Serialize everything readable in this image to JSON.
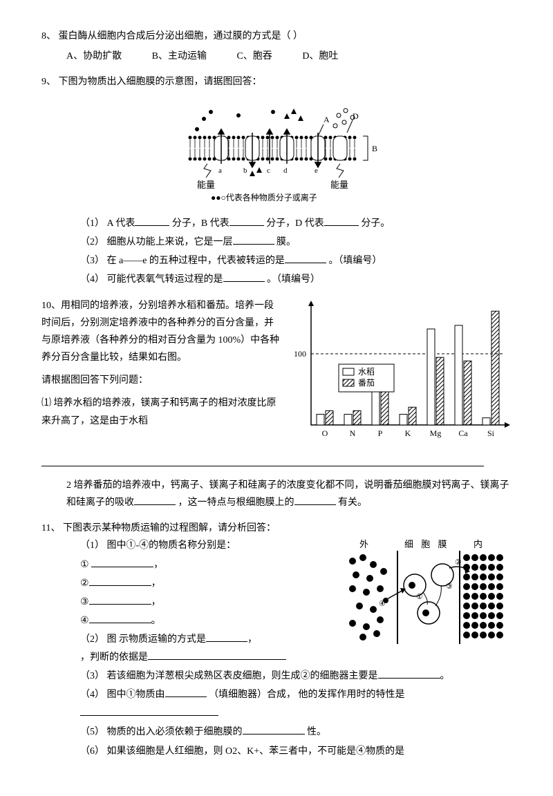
{
  "q8": {
    "num": "8、",
    "text": "蛋白酶从细胞内合成后分泌出细胞，通过膜的方式是（      ）",
    "opts": {
      "a": "A、协助扩散",
      "b": "B、主动运输",
      "c": "C、胞吞",
      "d": "D、胞吐"
    }
  },
  "q9": {
    "num": "9、",
    "text": "下图为物质出入细胞膜的示意图，请据图回答：",
    "caption": "●●○代表各种物质分子或离子",
    "energy_label": "能量",
    "labels": {
      "a": "a",
      "b": "b",
      "c": "c",
      "d": "d",
      "e": "e",
      "A": "A",
      "B": "B",
      "D": "D"
    },
    "s1a": "（1）  A 代表",
    "s1b": "分子，B 代表",
    "s1c": "分子，D 代表",
    "s1d": "分子。",
    "s2a": "（2）  细胞从功能上来说，它是一层",
    "s2b": "膜。",
    "s3a": "（3）  在 a——e 的五种过程中，代表被转运的是",
    "s3b": "。（填编号）",
    "s4a": "（4）  可能代表氧气转运过程的是",
    "s4b": "。（填编号）"
  },
  "q10": {
    "num": "10、",
    "intro1": "用相同的培养液，分别培养水稻和番茄。培养一段时间后，分别测定培养液中的各种养分的百分含量，并与原培养液（各种养分的相对百分含量为 100%）中各种养分百分含量比较，结果如右图。",
    "intro2": "请根据图回答下列问题：",
    "s1": "⑴  培养水稻的培养液，镁离子和钙离子的相对浓度比原来升高了，这是由于水稻",
    "s2a": "2  培养番茄的培养液中，钙离子、镁离子和硅离子的浓度变化都不同，说明番茄细胞膜对钙离子、镁离子和硅离子的吸收",
    "s2b": "，这一特点与根细胞膜上的",
    "s2c": "有关。",
    "chart": {
      "legend": {
        "rice": "水稻",
        "tomato": "番茄"
      },
      "categories": [
        "O",
        "N",
        "P",
        "K",
        "Mg",
        "Ca",
        "Si"
      ],
      "baseline": "100",
      "values": {
        "rice": [
          15,
          15,
          50,
          15,
          135,
          140,
          10
        ],
        "tomato": [
          20,
          20,
          60,
          25,
          95,
          90,
          160
        ]
      },
      "colors": {
        "rice_fill": "#ffffff",
        "tomato_pattern": "#000000",
        "axis": "#000000",
        "dashline": "#000000"
      },
      "ymax": 170
    }
  },
  "q11": {
    "num": "11、",
    "text": "下图表示某种物质运输的过程图解，请分析回答：",
    "s1": "（1）  图中①-④的物质名称分别是：",
    "item1": "①",
    "item2": "②",
    "item3": "③",
    "item4": "④",
    "comma": "，",
    "period": "。",
    "s2a": "（2）  图  示物质运输的方式是",
    "s2b": "，判断的依据是",
    "s3a": "（3）  若该细胞为洋葱根尖成熟区表皮细胞，则生成②的细胞器主要是",
    "s4a": "（4）  图中①物质由",
    "s4b": "（填细胞器）合成，  他的发挥作用时的特性是",
    "s5a": "（5）  物质的出入必须依赖于细胞膜的",
    "s5b": "性。",
    "s6": "（6）  如果该细胞是人红细胞，则 O2、K+、苯三者中，不可能是④物质的是",
    "diagram": {
      "outside": "外",
      "membrane": "细 胞 膜",
      "inside": "内",
      "l1": "①",
      "l2": "②",
      "l3": "③",
      "l4": "④"
    }
  }
}
